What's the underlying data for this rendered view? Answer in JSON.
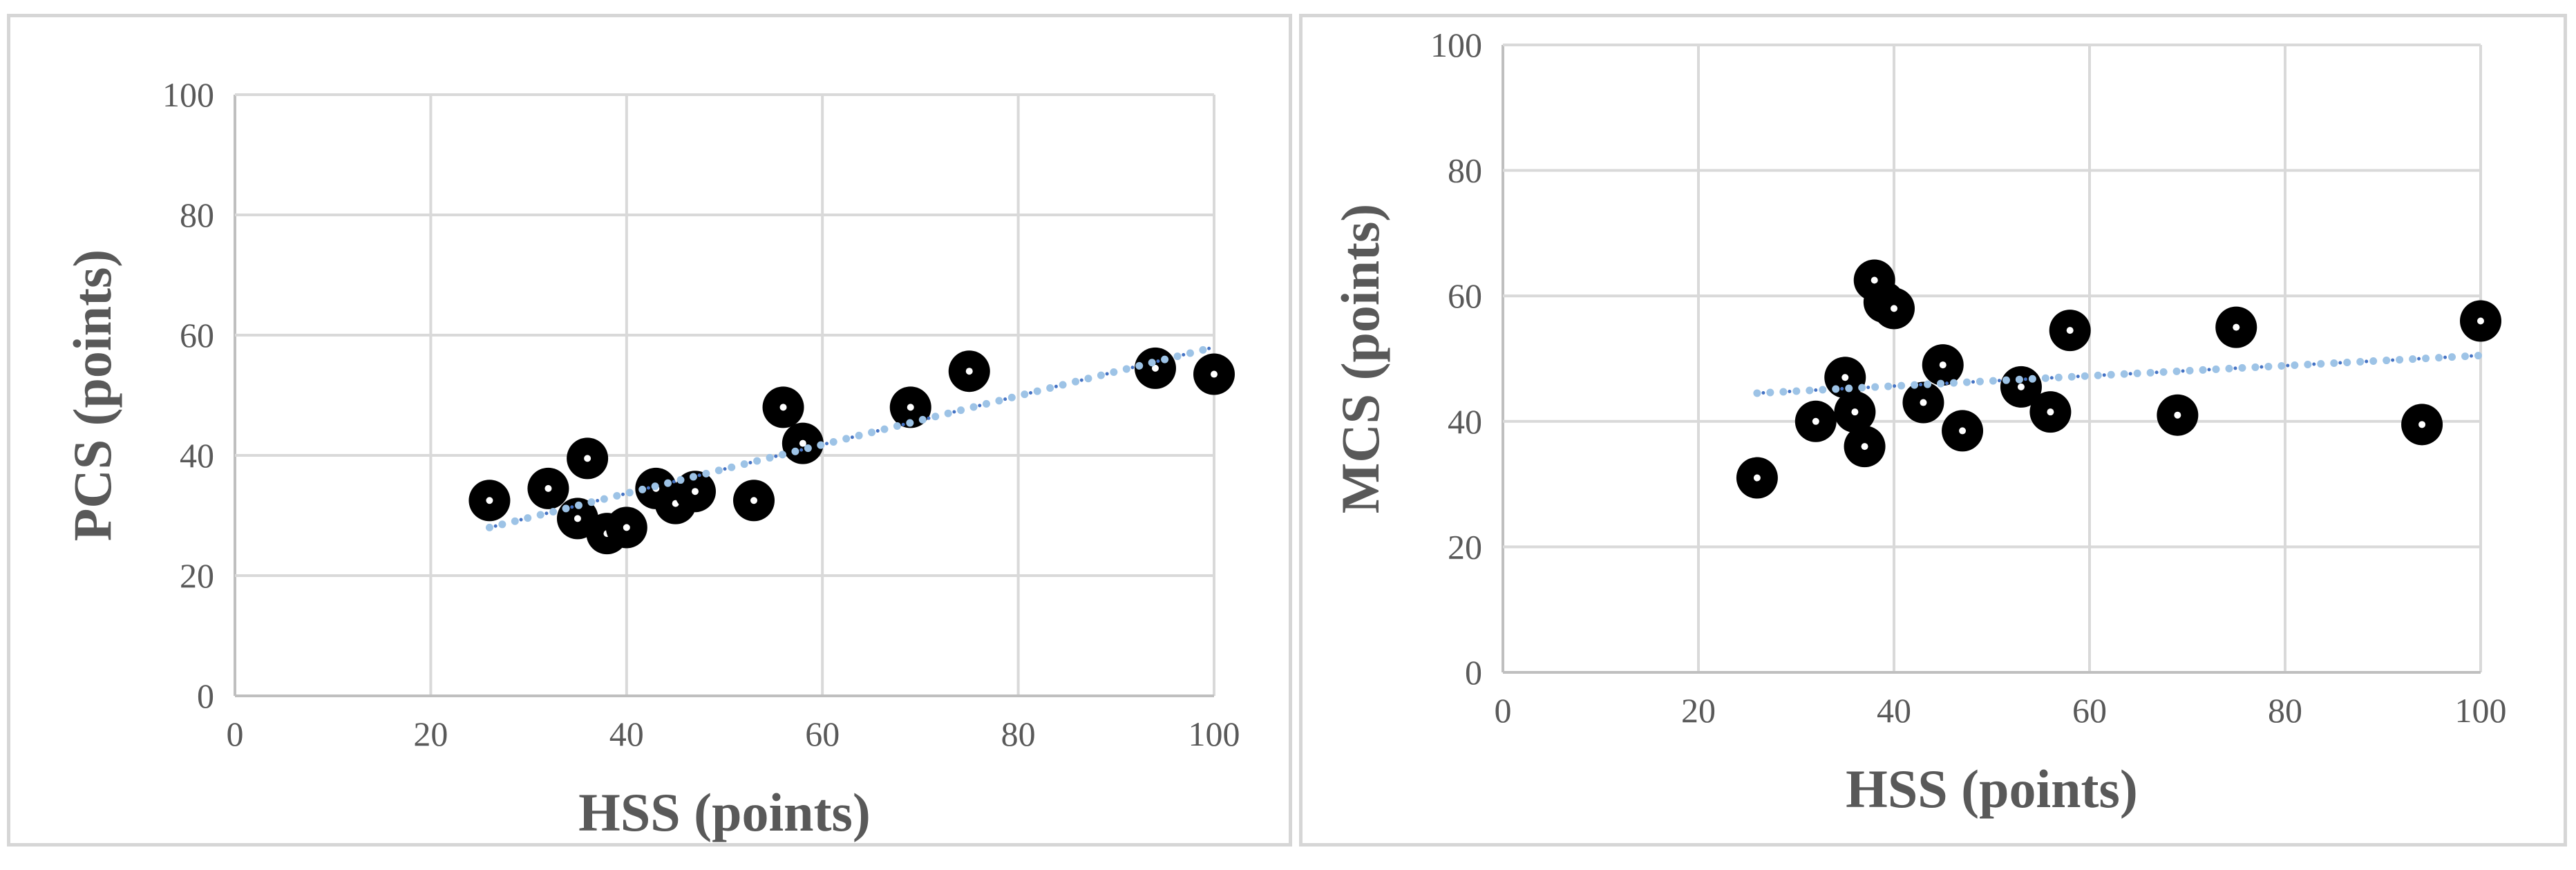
{
  "chart_data": [
    {
      "type": "scatter",
      "xlabel": "HSS (points)",
      "ylabel": "PCS (points)",
      "xlim": [
        0,
        100
      ],
      "ylim": [
        0,
        100
      ],
      "xticks": [
        0,
        20,
        40,
        60,
        80,
        100
      ],
      "yticks": [
        0,
        20,
        40,
        60,
        80,
        100
      ],
      "grid": true,
      "marker_color": "#000000",
      "trendline": {
        "type": "linear",
        "style": "dotted",
        "color": "#9dc3e6",
        "x": [
          26,
          100
        ],
        "y": [
          28,
          58
        ]
      },
      "points": [
        {
          "x": 26,
          "y": 32.5
        },
        {
          "x": 32,
          "y": 34.5
        },
        {
          "x": 35,
          "y": 29.5
        },
        {
          "x": 36,
          "y": 39.5
        },
        {
          "x": 38,
          "y": 27
        },
        {
          "x": 40,
          "y": 28
        },
        {
          "x": 43,
          "y": 34.5
        },
        {
          "x": 45,
          "y": 32
        },
        {
          "x": 47,
          "y": 34
        },
        {
          "x": 53,
          "y": 32.5
        },
        {
          "x": 56,
          "y": 48
        },
        {
          "x": 58,
          "y": 42
        },
        {
          "x": 69,
          "y": 48
        },
        {
          "x": 75,
          "y": 54
        },
        {
          "x": 94,
          "y": 54.5
        },
        {
          "x": 100,
          "y": 53.5
        }
      ]
    },
    {
      "type": "scatter",
      "xlabel": "HSS (points)",
      "ylabel": "MCS (points)",
      "xlim": [
        0,
        100
      ],
      "ylim": [
        0,
        100
      ],
      "xticks": [
        0,
        20,
        40,
        60,
        80,
        100
      ],
      "yticks": [
        0,
        20,
        40,
        60,
        80,
        100
      ],
      "grid": true,
      "marker_color": "#000000",
      "trendline": {
        "type": "linear",
        "style": "dotted",
        "color": "#9dc3e6",
        "x": [
          26,
          100
        ],
        "y": [
          44.5,
          50.5
        ]
      },
      "points": [
        {
          "x": 26,
          "y": 31
        },
        {
          "x": 32,
          "y": 40
        },
        {
          "x": 35,
          "y": 47
        },
        {
          "x": 36,
          "y": 41.5
        },
        {
          "x": 37,
          "y": 36
        },
        {
          "x": 38,
          "y": 62.5
        },
        {
          "x": 39,
          "y": 59
        },
        {
          "x": 40,
          "y": 58
        },
        {
          "x": 43,
          "y": 43
        },
        {
          "x": 45,
          "y": 49
        },
        {
          "x": 47,
          "y": 38.5
        },
        {
          "x": 53,
          "y": 45.5
        },
        {
          "x": 56,
          "y": 41.5
        },
        {
          "x": 58,
          "y": 54.5
        },
        {
          "x": 69,
          "y": 41
        },
        {
          "x": 75,
          "y": 55
        },
        {
          "x": 94,
          "y": 39.5
        },
        {
          "x": 100,
          "y": 56
        }
      ]
    }
  ]
}
